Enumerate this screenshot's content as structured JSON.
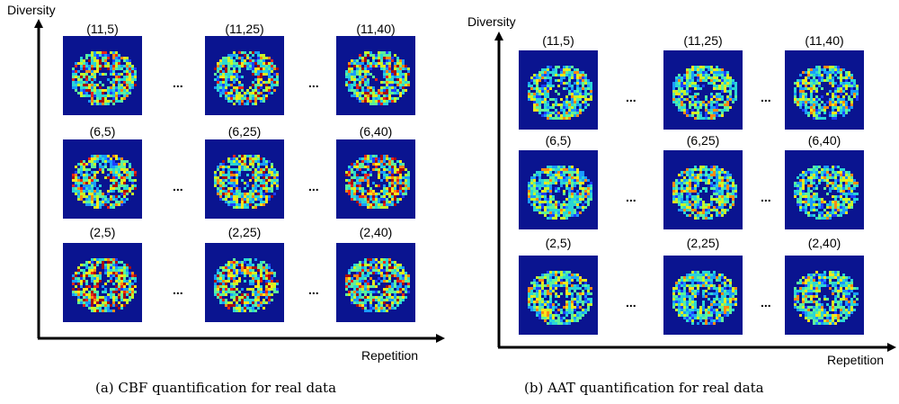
{
  "panels": [
    {
      "id": "a",
      "y_axis_label": "Diversity",
      "x_axis_label": "Repetition",
      "caption": "(a) CBF quantification for real data",
      "ellipsis": "...",
      "rows": [
        [
          "(11,5)",
          "(11,25)",
          "(11,40)"
        ],
        [
          "(6,5)",
          "(6,25)",
          "(6,40)"
        ],
        [
          "(2,5)",
          "(2,25)",
          "(2,40)"
        ]
      ],
      "colors": {
        "background": "#0a1490",
        "map": [
          "#1e3fff",
          "#1a9bff",
          "#2ad6d6",
          "#5ef29a",
          "#c8f52a",
          "#ffe51a",
          "#ff8a14",
          "#e8261a",
          "#a80c10"
        ]
      }
    },
    {
      "id": "b",
      "y_axis_label": "Diversity",
      "x_axis_label": "Repetition",
      "caption": "(b) AAT quantification for real data",
      "ellipsis": "...",
      "rows": [
        [
          "(11,5)",
          "(11,25)",
          "(11,40)"
        ],
        [
          "(6,5)",
          "(6,25)",
          "(6,40)"
        ],
        [
          "(2,5)",
          "(2,25)",
          "(2,40)"
        ]
      ],
      "colors": {
        "background": "#0a1490",
        "map": [
          "#1e3fff",
          "#1a9bff",
          "#2ad6d6",
          "#5ef29a",
          "#c8f52a",
          "#ffe51a",
          "#ff8a14"
        ]
      }
    }
  ]
}
